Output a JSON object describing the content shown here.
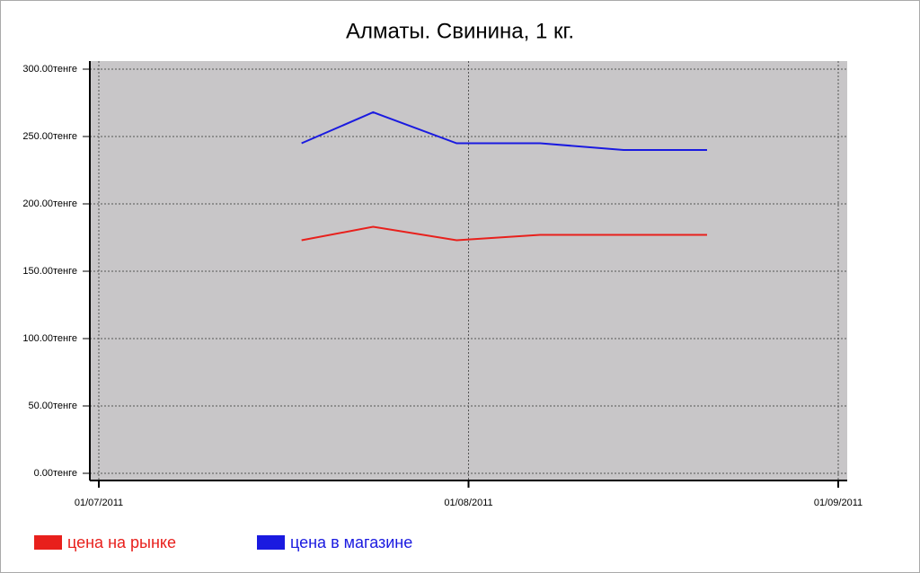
{
  "chart_data": {
    "type": "line",
    "title": "Алматы. Свинина, 1 кг.",
    "x": [
      "18/07/2011",
      "24/07/2011",
      "31/07/2011",
      "07/08/2011",
      "14/08/2011",
      "21/08/2011"
    ],
    "series": [
      {
        "name": "цена на рынке",
        "color": "#e8201c",
        "values": [
          173,
          183,
          173,
          177,
          177,
          177
        ]
      },
      {
        "name": "цена в магазине",
        "color": "#1a1ae0",
        "values": [
          245,
          268,
          245,
          245,
          240,
          240
        ]
      }
    ],
    "xlim": [
      "01/07/2011",
      "01/09/2011"
    ],
    "xticks": [
      "01/07/2011",
      "01/08/2011",
      "01/09/2011"
    ],
    "ylim": [
      0,
      300
    ],
    "yticks": [
      {
        "value": 0,
        "label": "0.00тенге"
      },
      {
        "value": 50,
        "label": "50.00тенге"
      },
      {
        "value": 100,
        "label": "100.00тенге"
      },
      {
        "value": 150,
        "label": "150.00тенге"
      },
      {
        "value": 200,
        "label": "200.00тенге"
      },
      {
        "value": 250,
        "label": "250.00тенге"
      },
      {
        "value": 300,
        "label": "300.00тенге"
      }
    ],
    "grid": true
  }
}
